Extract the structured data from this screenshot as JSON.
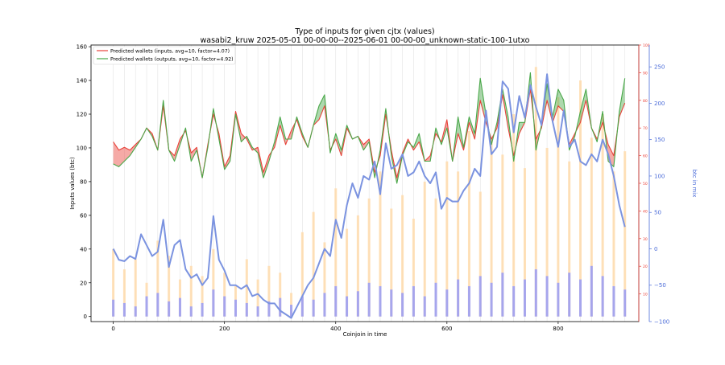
{
  "chart_data": {
    "type": "line",
    "title": "Type of inputs for given cjtx (values)",
    "subtitle": "wasabi2_kruw 2025-05-01 00-00-00--2025-06-01 00-00-00_unknown-static-100-1utxo",
    "xlabel": "Coinjoin in time",
    "ylabel": "Inputs values (btc)",
    "y2label": "",
    "y3label": "btc in mix",
    "xlim": [
      -40,
      945
    ],
    "ylim": [
      -3,
      161
    ],
    "y2lim": [
      0,
      100
    ],
    "y3lim": [
      -100,
      280
    ],
    "x_ticks": [
      0,
      200,
      400,
      600,
      800
    ],
    "y_ticks": [
      0,
      20,
      40,
      60,
      80,
      100,
      120,
      140,
      160
    ],
    "y2_ticks": [
      10,
      20,
      30,
      40,
      50,
      60,
      70,
      80,
      90,
      100
    ],
    "y3_ticks": [
      -100,
      -50,
      0,
      50,
      100,
      150,
      200,
      250
    ],
    "grid": "vertical",
    "legend_position": "top-left",
    "series": [
      {
        "name": "Predicted wallets (inputs, avg=10, factor=4.07)",
        "axis": "y2",
        "color": "#e8423a",
        "x": [
          0,
          10,
          20,
          30,
          40,
          50,
          60,
          70,
          80,
          90,
          100,
          110,
          120,
          130,
          140,
          150,
          160,
          170,
          180,
          190,
          200,
          210,
          220,
          230,
          240,
          250,
          260,
          270,
          280,
          290,
          300,
          310,
          320,
          330,
          340,
          350,
          360,
          370,
          380,
          390,
          400,
          410,
          420,
          430,
          440,
          450,
          460,
          470,
          480,
          490,
          500,
          510,
          520,
          530,
          540,
          550,
          560,
          570,
          580,
          590,
          600,
          610,
          620,
          630,
          640,
          650,
          660,
          670,
          680,
          690,
          700,
          710,
          720,
          730,
          740,
          750,
          760,
          770,
          780,
          790,
          800,
          810,
          820,
          830,
          840,
          850,
          860,
          870,
          880,
          890,
          900,
          910,
          920
        ],
        "values": [
          65,
          62,
          63,
          62,
          64,
          66,
          70,
          68,
          62,
          78,
          62,
          60,
          66,
          69,
          61,
          63,
          52,
          64,
          75,
          68,
          56,
          60,
          76,
          68,
          66,
          62,
          63,
          54,
          60,
          63,
          71,
          64,
          69,
          73,
          67,
          63,
          71,
          73,
          78,
          62,
          66,
          60,
          70,
          66,
          67,
          64,
          66,
          54,
          60,
          75,
          62,
          52,
          61,
          66,
          62,
          65,
          58,
          60,
          68,
          65,
          73,
          58,
          68,
          62,
          72,
          66,
          80,
          72,
          66,
          70,
          82,
          70,
          60,
          68,
          72,
          84,
          66,
          70,
          80,
          72,
          78,
          76,
          64,
          68,
          72,
          80,
          70,
          66,
          72,
          64,
          60,
          74,
          79
        ]
      },
      {
        "name": "Predicted wallets (outputs, avg=10, factor=4.92)",
        "axis": "y2",
        "color": "#4aa84a",
        "x": [
          0,
          10,
          20,
          30,
          40,
          50,
          60,
          70,
          80,
          90,
          100,
          110,
          120,
          130,
          140,
          150,
          160,
          170,
          180,
          190,
          200,
          210,
          220,
          230,
          240,
          250,
          260,
          270,
          280,
          290,
          300,
          310,
          320,
          330,
          340,
          350,
          360,
          370,
          380,
          390,
          400,
          410,
          420,
          430,
          440,
          450,
          460,
          470,
          480,
          490,
          500,
          510,
          520,
          530,
          540,
          550,
          560,
          570,
          580,
          590,
          600,
          610,
          620,
          630,
          640,
          650,
          660,
          670,
          680,
          690,
          700,
          710,
          720,
          730,
          740,
          750,
          760,
          770,
          780,
          790,
          800,
          810,
          820,
          830,
          840,
          850,
          860,
          870,
          880,
          890,
          900,
          910,
          920
        ],
        "values": [
          57,
          56,
          58,
          60,
          63,
          66,
          70,
          67,
          62,
          80,
          62,
          58,
          64,
          70,
          58,
          62,
          52,
          63,
          77,
          66,
          55,
          58,
          75,
          65,
          67,
          63,
          61,
          52,
          58,
          65,
          74,
          66,
          66,
          74,
          68,
          63,
          71,
          78,
          82,
          61,
          68,
          62,
          71,
          66,
          67,
          62,
          65,
          52,
          62,
          77,
          60,
          50,
          60,
          65,
          63,
          68,
          58,
          58,
          70,
          64,
          70,
          58,
          74,
          63,
          74,
          68,
          88,
          75,
          64,
          72,
          84,
          74,
          58,
          72,
          72,
          90,
          62,
          71,
          86,
          74,
          84,
          80,
          62,
          67,
          76,
          84,
          70,
          65,
          76,
          58,
          56,
          76,
          88
        ]
      },
      {
        "name": "",
        "axis": "y3",
        "color": "#7b93e0",
        "x": [
          0,
          10,
          20,
          30,
          40,
          50,
          60,
          70,
          80,
          90,
          100,
          110,
          120,
          130,
          140,
          150,
          160,
          170,
          180,
          190,
          200,
          210,
          220,
          230,
          240,
          250,
          260,
          270,
          280,
          290,
          300,
          310,
          320,
          330,
          340,
          350,
          360,
          370,
          380,
          390,
          400,
          410,
          420,
          430,
          440,
          450,
          460,
          470,
          480,
          490,
          500,
          510,
          520,
          530,
          540,
          550,
          560,
          570,
          580,
          590,
          600,
          610,
          620,
          630,
          640,
          650,
          660,
          670,
          680,
          690,
          700,
          710,
          720,
          730,
          740,
          750,
          760,
          770,
          780,
          790,
          800,
          810,
          820,
          830,
          840,
          850,
          860,
          870,
          880,
          890,
          900,
          910,
          920
        ],
        "values": [
          0,
          -15,
          -17,
          -10,
          -14,
          20,
          5,
          -10,
          -4,
          40,
          -25,
          5,
          12,
          -28,
          -40,
          -35,
          -50,
          -40,
          45,
          -15,
          -30,
          -50,
          -50,
          -55,
          -50,
          -65,
          -62,
          -70,
          -75,
          -75,
          -85,
          -90,
          -95,
          -80,
          -65,
          -50,
          -40,
          -20,
          0,
          -10,
          40,
          15,
          60,
          90,
          70,
          100,
          95,
          120,
          75,
          145,
          110,
          115,
          130,
          100,
          105,
          120,
          100,
          90,
          105,
          55,
          70,
          65,
          65,
          80,
          90,
          110,
          100,
          190,
          130,
          140,
          230,
          220,
          160,
          210,
          180,
          225,
          195,
          170,
          240,
          175,
          140,
          190,
          140,
          150,
          120,
          115,
          130,
          120,
          150,
          130,
          100,
          60,
          30
        ]
      },
      {
        "name": "",
        "axis": "y",
        "color": "#ffd9a8",
        "type": "bar",
        "x": [
          0,
          20,
          40,
          60,
          80,
          100,
          120,
          140,
          160,
          180,
          200,
          220,
          240,
          260,
          280,
          300,
          320,
          340,
          360,
          380,
          400,
          420,
          440,
          460,
          480,
          500,
          520,
          540,
          560,
          580,
          600,
          620,
          640,
          660,
          680,
          700,
          720,
          740,
          760,
          780,
          800,
          820,
          840,
          860,
          880,
          900,
          920
        ],
        "values": [
          40,
          28,
          34,
          20,
          45,
          36,
          22,
          30,
          24,
          40,
          26,
          18,
          34,
          22,
          30,
          26,
          14,
          50,
          62,
          44,
          76,
          52,
          60,
          70,
          86,
          64,
          72,
          58,
          80,
          70,
          92,
          86,
          110,
          74,
          104,
          96,
          120,
          88,
          148,
          100,
          130,
          92,
          140,
          106,
          120,
          86,
          98
        ]
      },
      {
        "name": "",
        "axis": "y",
        "color": "#8a92ff",
        "type": "bar",
        "x": [
          0,
          20,
          40,
          60,
          80,
          100,
          120,
          140,
          160,
          180,
          200,
          220,
          240,
          260,
          280,
          300,
          320,
          340,
          360,
          380,
          400,
          420,
          440,
          460,
          480,
          500,
          520,
          540,
          560,
          580,
          600,
          620,
          640,
          660,
          680,
          700,
          720,
          740,
          760,
          780,
          800,
          820,
          840,
          860,
          880,
          900,
          920
        ],
        "values": [
          10,
          8,
          6,
          12,
          14,
          9,
          11,
          6,
          8,
          16,
          12,
          10,
          8,
          6,
          9,
          11,
          7,
          12,
          10,
          14,
          18,
          12,
          15,
          20,
          18,
          16,
          14,
          18,
          12,
          20,
          16,
          22,
          18,
          24,
          20,
          26,
          18,
          22,
          28,
          24,
          20,
          26,
          22,
          30,
          24,
          18,
          16
        ]
      }
    ]
  }
}
